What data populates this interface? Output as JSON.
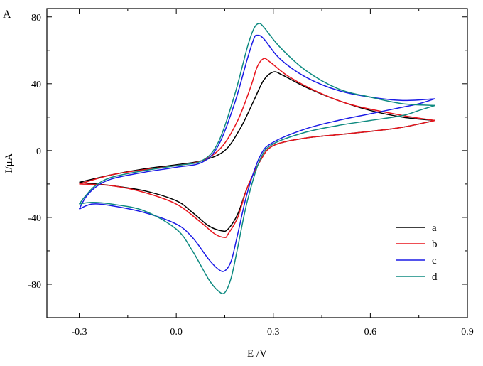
{
  "panel_label": "A",
  "chart_data": {
    "type": "line",
    "xlabel": "E /V",
    "ylabel": "I/μA",
    "xlim": [
      -0.4,
      0.9
    ],
    "ylim": [
      -100,
      85
    ],
    "x_ticks": [
      -0.3,
      0.0,
      0.3,
      0.6,
      0.9
    ],
    "x_tick_labels": [
      "-0.3",
      "0.0",
      "0.3",
      "0.6",
      "0.9"
    ],
    "y_ticks": [
      -80,
      -40,
      0,
      40,
      80
    ],
    "y_tick_labels": [
      "-80",
      "-40",
      "0",
      "40",
      "80"
    ],
    "grid": false,
    "legend_position": "lower-right",
    "series": [
      {
        "name": "a",
        "color": "#000000",
        "forward": [
          [
            -0.3,
            -19
          ],
          [
            -0.2,
            -14.5
          ],
          [
            -0.1,
            -11
          ],
          [
            0.0,
            -8.5
          ],
          [
            0.08,
            -6
          ],
          [
            0.15,
            0
          ],
          [
            0.2,
            14
          ],
          [
            0.24,
            30
          ],
          [
            0.27,
            42
          ],
          [
            0.3,
            47
          ],
          [
            0.33,
            45
          ],
          [
            0.4,
            38
          ],
          [
            0.5,
            30
          ],
          [
            0.6,
            24
          ],
          [
            0.7,
            20
          ],
          [
            0.8,
            18
          ]
        ],
        "reverse": [
          [
            0.8,
            18
          ],
          [
            0.7,
            14
          ],
          [
            0.6,
            11.5
          ],
          [
            0.5,
            9.5
          ],
          [
            0.4,
            7.5
          ],
          [
            0.3,
            3
          ],
          [
            0.26,
            -6
          ],
          [
            0.22,
            -22
          ],
          [
            0.19,
            -38
          ],
          [
            0.16,
            -47
          ],
          [
            0.14,
            -48
          ],
          [
            0.1,
            -45
          ],
          [
            0.05,
            -37
          ],
          [
            0.0,
            -30
          ],
          [
            -0.1,
            -24
          ],
          [
            -0.2,
            -21
          ],
          [
            -0.3,
            -19
          ]
        ]
      },
      {
        "name": "b",
        "color": "#e8141c",
        "forward": [
          [
            -0.3,
            -20
          ],
          [
            -0.2,
            -14.5
          ],
          [
            -0.1,
            -11.5
          ],
          [
            0.0,
            -9
          ],
          [
            0.08,
            -6
          ],
          [
            0.14,
            2
          ],
          [
            0.19,
            18
          ],
          [
            0.23,
            38
          ],
          [
            0.25,
            50
          ],
          [
            0.27,
            55
          ],
          [
            0.29,
            53
          ],
          [
            0.35,
            44
          ],
          [
            0.45,
            34
          ],
          [
            0.55,
            27
          ],
          [
            0.7,
            21
          ],
          [
            0.8,
            18
          ]
        ],
        "reverse": [
          [
            0.8,
            18
          ],
          [
            0.7,
            14
          ],
          [
            0.6,
            11.5
          ],
          [
            0.5,
            9.5
          ],
          [
            0.4,
            7.5
          ],
          [
            0.3,
            3
          ],
          [
            0.26,
            -6
          ],
          [
            0.22,
            -22
          ],
          [
            0.19,
            -40
          ],
          [
            0.16,
            -50
          ],
          [
            0.15,
            -52
          ],
          [
            0.12,
            -50
          ],
          [
            0.07,
            -42
          ],
          [
            0.0,
            -32
          ],
          [
            -0.1,
            -25
          ],
          [
            -0.2,
            -21
          ],
          [
            -0.3,
            -20
          ]
        ]
      },
      {
        "name": "c",
        "color": "#1a1ae6",
        "forward": [
          [
            -0.3,
            -35
          ],
          [
            -0.28,
            -28
          ],
          [
            -0.25,
            -22
          ],
          [
            -0.2,
            -17
          ],
          [
            -0.1,
            -13
          ],
          [
            0.0,
            -10
          ],
          [
            0.08,
            -7
          ],
          [
            0.13,
            3
          ],
          [
            0.18,
            28
          ],
          [
            0.22,
            55
          ],
          [
            0.24,
            67
          ],
          [
            0.25,
            69
          ],
          [
            0.27,
            67
          ],
          [
            0.32,
            55
          ],
          [
            0.4,
            44
          ],
          [
            0.5,
            36
          ],
          [
            0.6,
            32
          ],
          [
            0.7,
            30
          ],
          [
            0.8,
            31
          ]
        ],
        "reverse": [
          [
            0.8,
            31
          ],
          [
            0.75,
            28
          ],
          [
            0.7,
            26
          ],
          [
            0.6,
            22
          ],
          [
            0.5,
            18
          ],
          [
            0.4,
            13
          ],
          [
            0.3,
            5
          ],
          [
            0.26,
            -3
          ],
          [
            0.22,
            -25
          ],
          [
            0.19,
            -50
          ],
          [
            0.17,
            -66
          ],
          [
            0.15,
            -72
          ],
          [
            0.13,
            -71
          ],
          [
            0.1,
            -65
          ],
          [
            0.05,
            -52
          ],
          [
            0.0,
            -44
          ],
          [
            -0.1,
            -37
          ],
          [
            -0.2,
            -33
          ],
          [
            -0.26,
            -32
          ],
          [
            -0.3,
            -35
          ]
        ]
      },
      {
        "name": "d",
        "color": "#0e8a80",
        "forward": [
          [
            -0.3,
            -32
          ],
          [
            -0.28,
            -27
          ],
          [
            -0.25,
            -21
          ],
          [
            -0.2,
            -16
          ],
          [
            -0.1,
            -12
          ],
          [
            0.0,
            -9
          ],
          [
            0.08,
            -6
          ],
          [
            0.13,
            5
          ],
          [
            0.18,
            33
          ],
          [
            0.22,
            62
          ],
          [
            0.24,
            73
          ],
          [
            0.255,
            76
          ],
          [
            0.27,
            74
          ],
          [
            0.32,
            62
          ],
          [
            0.4,
            48
          ],
          [
            0.5,
            37
          ],
          [
            0.6,
            32
          ],
          [
            0.7,
            28
          ],
          [
            0.8,
            27
          ]
        ],
        "reverse": [
          [
            0.8,
            27
          ],
          [
            0.75,
            24
          ],
          [
            0.7,
            21
          ],
          [
            0.6,
            18
          ],
          [
            0.5,
            15
          ],
          [
            0.4,
            11
          ],
          [
            0.3,
            4
          ],
          [
            0.26,
            -5
          ],
          [
            0.22,
            -30
          ],
          [
            0.19,
            -58
          ],
          [
            0.17,
            -76
          ],
          [
            0.15,
            -85
          ],
          [
            0.13,
            -84
          ],
          [
            0.1,
            -77
          ],
          [
            0.05,
            -60
          ],
          [
            0.0,
            -47
          ],
          [
            -0.1,
            -36
          ],
          [
            -0.2,
            -32
          ],
          [
            -0.26,
            -31
          ],
          [
            -0.3,
            -32
          ]
        ]
      }
    ]
  }
}
